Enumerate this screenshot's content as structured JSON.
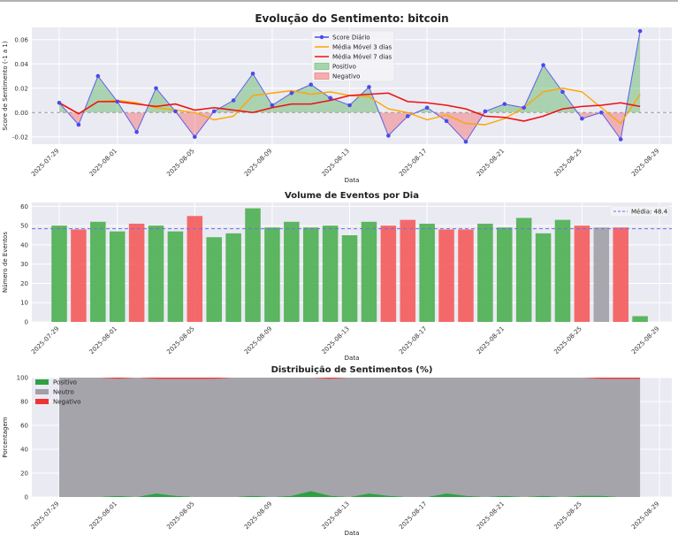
{
  "colors": {
    "score": "#4a4aee",
    "ma3": "#ffa500",
    "ma7": "#ee1111",
    "pos": "#4caf50",
    "neg": "#f45b5b",
    "neutral": "#a0a0a5",
    "mean": "#6d6df0",
    "panel": "#eaeaf2"
  },
  "chart_data": [
    {
      "id": "sentiment",
      "type": "line",
      "title": "Evolução do Sentimento: bitcoin",
      "xlabel": "Data",
      "ylabel": "Score de Sentimento (-1 a 1)",
      "ylim": [
        -0.026,
        0.07
      ],
      "yticks": [
        "-0.02",
        "0.00",
        "0.02",
        "0.04",
        "0.06"
      ],
      "xticks": [
        "2025-07-29",
        "2025-08-01",
        "2025-08-05",
        "2025-08-09",
        "2025-08-13",
        "2025-08-17",
        "2025-08-21",
        "2025-08-25",
        "2025-08-29"
      ],
      "dates": [
        "2025-07-29",
        "2025-07-30",
        "2025-07-31",
        "2025-08-01",
        "2025-08-02",
        "2025-08-03",
        "2025-08-04",
        "2025-08-05",
        "2025-08-06",
        "2025-08-07",
        "2025-08-08",
        "2025-08-09",
        "2025-08-10",
        "2025-08-11",
        "2025-08-12",
        "2025-08-13",
        "2025-08-14",
        "2025-08-15",
        "2025-08-16",
        "2025-08-17",
        "2025-08-18",
        "2025-08-19",
        "2025-08-20",
        "2025-08-21",
        "2025-08-22",
        "2025-08-23",
        "2025-08-24",
        "2025-08-25",
        "2025-08-26",
        "2025-08-27",
        "2025-08-28"
      ],
      "series": [
        {
          "name": "Score Diário",
          "values": [
            0.008,
            -0.01,
            0.03,
            0.009,
            -0.016,
            0.02,
            0.001,
            -0.02,
            0.001,
            0.01,
            0.032,
            0.006,
            0.016,
            0.023,
            0.012,
            0.006,
            0.021,
            -0.019,
            -0.003,
            0.004,
            -0.007,
            -0.024,
            0.001,
            0.007,
            0.004,
            0.039,
            0.017,
            -0.005,
            0.0,
            -0.022,
            0.067
          ]
        },
        {
          "name": "Média Móvel 3 dias",
          "values": [
            0.008,
            -0.001,
            0.009,
            0.01,
            0.008,
            0.004,
            0.002,
            0.0,
            -0.006,
            -0.003,
            0.014,
            0.016,
            0.018,
            0.015,
            0.017,
            0.014,
            0.013,
            0.003,
            0.0,
            -0.006,
            -0.002,
            -0.009,
            -0.01,
            -0.005,
            0.004,
            0.017,
            0.02,
            0.017,
            0.004,
            -0.009,
            0.015
          ]
        },
        {
          "name": "Média Móvel 7 dias",
          "values": [
            0.008,
            -0.001,
            0.009,
            0.009,
            0.007,
            0.005,
            0.007,
            0.002,
            0.004,
            0.002,
            0.0,
            0.004,
            0.007,
            0.007,
            0.01,
            0.014,
            0.015,
            0.016,
            0.009,
            0.008,
            0.006,
            0.003,
            -0.003,
            -0.004,
            -0.007,
            -0.003,
            0.003,
            0.005,
            0.006,
            0.008,
            0.005
          ]
        }
      ],
      "fill_legend": [
        "Positivo",
        "Negativo"
      ]
    },
    {
      "id": "volume",
      "type": "bar",
      "title": "Volume de Eventos por Dia",
      "xlabel": "Data",
      "ylabel": "Número de Eventos",
      "ylim": [
        0,
        62
      ],
      "yticks": [
        "0",
        "10",
        "20",
        "30",
        "40",
        "50",
        "60"
      ],
      "xticks": [
        "2025-07-29",
        "2025-08-01",
        "2025-08-05",
        "2025-08-09",
        "2025-08-13",
        "2025-08-17",
        "2025-08-21",
        "2025-08-25",
        "2025-08-29"
      ],
      "values": [
        50,
        48,
        52,
        47,
        51,
        50,
        47,
        55,
        44,
        46,
        59,
        49,
        52,
        49,
        50,
        45,
        52,
        50,
        53,
        51,
        48,
        48,
        51,
        49,
        54,
        46,
        53,
        50,
        49,
        49,
        3
      ],
      "bar_sentiment": [
        "pos",
        "neg",
        "pos",
        "pos",
        "neg",
        "pos",
        "pos",
        "neg",
        "pos",
        "pos",
        "pos",
        "pos",
        "pos",
        "pos",
        "pos",
        "pos",
        "pos",
        "neg",
        "neg",
        "pos",
        "neg",
        "neg",
        "pos",
        "pos",
        "pos",
        "pos",
        "pos",
        "neg",
        "neutral",
        "neg",
        "pos"
      ],
      "mean": 48.4,
      "mean_label": "Média: 48.4"
    },
    {
      "id": "distribution",
      "type": "area",
      "title": "Distribuição de Sentimentos (%)",
      "xlabel": "Data",
      "ylabel": "Porcentagem",
      "ylim": [
        0,
        100
      ],
      "yticks": [
        "0",
        "20",
        "40",
        "60",
        "80",
        "100"
      ],
      "xticks": [
        "2025-07-29",
        "2025-08-01",
        "2025-08-05",
        "2025-08-09",
        "2025-08-13",
        "2025-08-17",
        "2025-08-21",
        "2025-08-25",
        "2025-08-29"
      ],
      "series": [
        {
          "name": "Positivo",
          "values": [
            0,
            0,
            0,
            1,
            0,
            3,
            1,
            0,
            0,
            0,
            1,
            0,
            1,
            5,
            1,
            0,
            3,
            1,
            0,
            0,
            3,
            1,
            0,
            1,
            0,
            1,
            0,
            1,
            1,
            0,
            0
          ]
        },
        {
          "name": "Negativo",
          "values": [
            0,
            0,
            0,
            1,
            0,
            1,
            1,
            1,
            1,
            0,
            0,
            0,
            0,
            0,
            1,
            0,
            0,
            0,
            0,
            0,
            0,
            0,
            0,
            0,
            0,
            0,
            0,
            0,
            1,
            1,
            1
          ]
        }
      ],
      "neutral_label": "Neutro"
    }
  ]
}
